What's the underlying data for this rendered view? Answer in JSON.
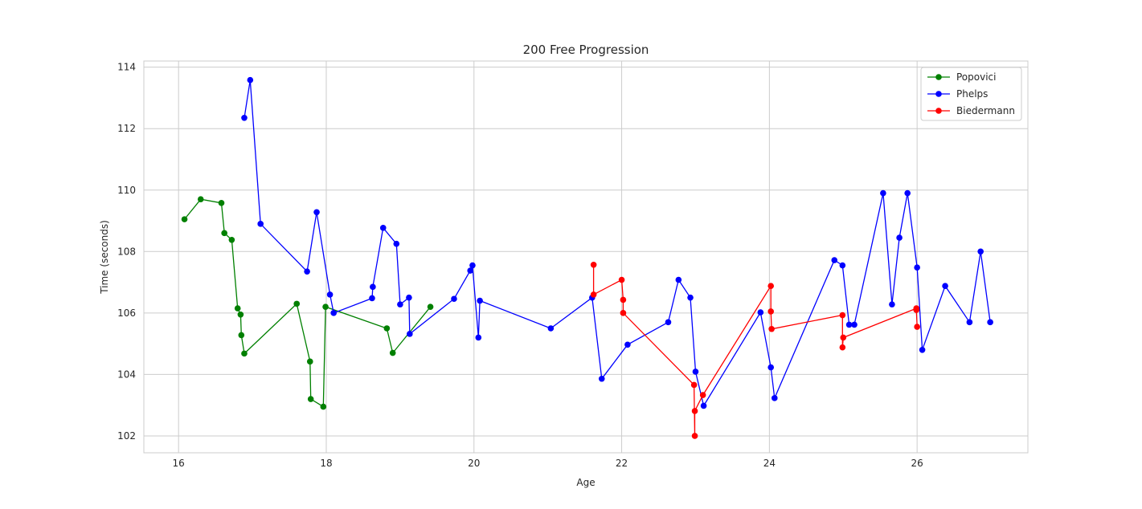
{
  "chart_data": {
    "type": "line",
    "title": "200 Free Progression",
    "xlabel": "Age",
    "ylabel": "Time (seconds)",
    "xlim": [
      15.53,
      27.5
    ],
    "ylim": [
      101.45,
      114.2
    ],
    "xticks": [
      "16",
      "18",
      "20",
      "22",
      "24",
      "26"
    ],
    "yticks": [
      "102",
      "104",
      "106",
      "108",
      "110",
      "112",
      "114"
    ],
    "grid": true,
    "legend_position": "top-right",
    "series": [
      {
        "name": "Popovici",
        "color": "#008000",
        "points": [
          [
            16.08,
            109.05
          ],
          [
            16.3,
            109.7
          ],
          [
            16.58,
            109.58
          ],
          [
            16.62,
            108.6
          ],
          [
            16.72,
            108.38
          ],
          [
            16.8,
            106.15
          ],
          [
            16.84,
            105.95
          ],
          [
            16.85,
            105.28
          ],
          [
            16.89,
            104.68
          ],
          [
            17.6,
            106.3
          ],
          [
            17.78,
            104.42
          ],
          [
            17.79,
            103.2
          ],
          [
            17.96,
            102.95
          ],
          [
            17.99,
            106.2
          ],
          [
            18.82,
            105.5
          ],
          [
            18.9,
            104.7
          ],
          [
            19.41,
            106.2
          ]
        ]
      },
      {
        "name": "Phelps",
        "color": "#0000ff",
        "points": [
          [
            16.89,
            112.35
          ],
          [
            16.97,
            113.58
          ],
          [
            17.11,
            108.9
          ],
          [
            17.74,
            107.35
          ],
          [
            17.87,
            109.28
          ],
          [
            18.05,
            106.6
          ],
          [
            18.1,
            106.0
          ],
          [
            18.62,
            106.48
          ],
          [
            18.63,
            106.85
          ],
          [
            18.77,
            108.77
          ],
          [
            18.95,
            108.25
          ],
          [
            19.0,
            106.28
          ],
          [
            19.12,
            106.5
          ],
          [
            19.13,
            105.32
          ],
          [
            19.73,
            106.46
          ],
          [
            19.95,
            107.38
          ],
          [
            19.98,
            107.55
          ],
          [
            20.06,
            105.2
          ],
          [
            20.08,
            106.4
          ],
          [
            21.04,
            105.5
          ],
          [
            21.6,
            106.5
          ],
          [
            21.73,
            103.86
          ],
          [
            22.08,
            104.97
          ],
          [
            22.63,
            105.7
          ],
          [
            22.77,
            107.08
          ],
          [
            22.93,
            106.5
          ],
          [
            23.0,
            104.09
          ],
          [
            23.11,
            102.98
          ],
          [
            23.88,
            106.02
          ],
          [
            24.02,
            104.23
          ],
          [
            24.07,
            103.23
          ],
          [
            24.88,
            107.72
          ],
          [
            24.99,
            107.55
          ],
          [
            25.08,
            105.62
          ],
          [
            25.15,
            105.62
          ],
          [
            25.54,
            109.9
          ],
          [
            25.66,
            106.28
          ],
          [
            25.76,
            108.45
          ],
          [
            25.87,
            109.9
          ],
          [
            26.0,
            107.48
          ],
          [
            26.07,
            104.8
          ],
          [
            26.38,
            106.88
          ],
          [
            26.71,
            105.7
          ],
          [
            26.86,
            108.0
          ],
          [
            26.99,
            105.7
          ]
        ]
      },
      {
        "name": "Biedermann",
        "color": "#ff0000",
        "points": [
          [
            21.62,
            107.57
          ],
          [
            21.62,
            106.6
          ],
          [
            22.0,
            107.08
          ],
          [
            22.02,
            106.43
          ],
          [
            22.02,
            106.0
          ],
          [
            22.98,
            103.66
          ],
          [
            22.99,
            102.0
          ],
          [
            22.99,
            102.81
          ],
          [
            23.1,
            103.33
          ],
          [
            24.02,
            106.88
          ],
          [
            24.02,
            106.05
          ],
          [
            24.03,
            105.48
          ],
          [
            24.99,
            105.93
          ],
          [
            24.99,
            104.88
          ],
          [
            25.0,
            105.2
          ],
          [
            25.99,
            106.15
          ],
          [
            25.99,
            106.1
          ],
          [
            26.0,
            105.55
          ]
        ]
      }
    ]
  }
}
